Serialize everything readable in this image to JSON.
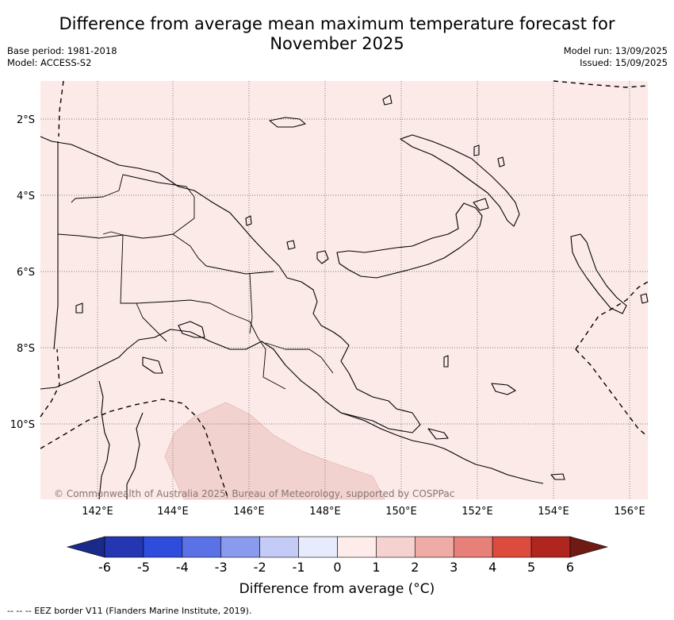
{
  "header": {
    "title_line1": "Difference from average mean maximum temperature forecast for",
    "title_line2": "November 2025",
    "base_period": "Base period: 1981-2018",
    "model": "Model: ACCESS-S2",
    "model_run": "Model run: 13/09/2025",
    "issued": "Issued: 15/09/2025"
  },
  "map": {
    "lat_labels": [
      "2°S",
      "4°S",
      "6°S",
      "8°S",
      "10°S"
    ],
    "lon_labels": [
      "142°E",
      "144°E",
      "146°E",
      "148°E",
      "150°E",
      "152°E",
      "154°E",
      "156°E"
    ],
    "copyright": "© Commonwealth of Australia 2025, Bureau of Meteorology, supported by COSPPac",
    "background_color": "#fbeae8",
    "anomaly_patch_color": "#f2d2cf"
  },
  "colorbar": {
    "ticks": [
      "-6",
      "-5",
      "-4",
      "-3",
      "-2",
      "-1",
      "0",
      "1",
      "2",
      "3",
      "4",
      "5",
      "6"
    ],
    "colors": [
      "#1a2a8a",
      "#2436b2",
      "#2e4ddc",
      "#5b72e6",
      "#8a9bee",
      "#c3cbf6",
      "#e8ebfb",
      "#fdecea",
      "#f5d2cf",
      "#efaca6",
      "#e68078",
      "#dd4a3e",
      "#b0261e",
      "#701a14"
    ],
    "label": "Difference from average (°C)"
  },
  "legend": {
    "eez": "--  --  -- EEZ border V11 (Flanders Marine Institute, 2019)."
  }
}
